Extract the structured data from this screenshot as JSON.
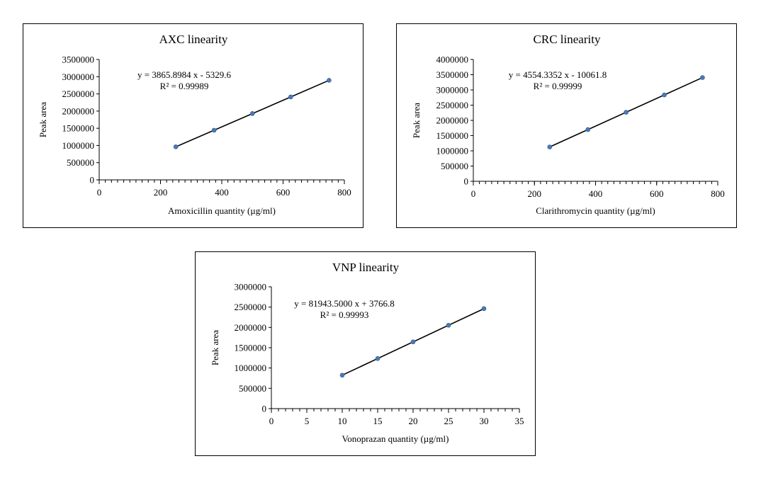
{
  "chart_data": [
    {
      "type": "scatter",
      "title": "AXC linearity",
      "xlabel": "Amoxicillin  quantity  (µg/ml)",
      "ylabel": "Peak area",
      "xlim": [
        0,
        800
      ],
      "ylim": [
        0,
        3500000
      ],
      "xticks": [
        0,
        200,
        400,
        600,
        800
      ],
      "yticks": [
        0,
        500000,
        1000000,
        1500000,
        2000000,
        2500000,
        3000000,
        3500000
      ],
      "x_minor_step": 20,
      "grid": false,
      "legend": "none",
      "trendline": "linear",
      "marker_color": "#4a7ab5",
      "line_color": "#000000",
      "series": [
        {
          "x": [
            250,
            375,
            500,
            625,
            750
          ],
          "y": [
            961000,
            1444000,
            1928000,
            2411000,
            2894000
          ]
        }
      ],
      "annotations": [
        "y = 3865.8984 x - 5329.6",
        "R² = 0.99989"
      ]
    },
    {
      "type": "scatter",
      "title": "CRC linearity",
      "xlabel": "Clarithromycin  quantity  (µg/ml)",
      "ylabel": "Peak area",
      "xlim": [
        0,
        800
      ],
      "ylim": [
        0,
        4000000
      ],
      "xticks": [
        0,
        200,
        400,
        600,
        800
      ],
      "yticks": [
        0,
        500000,
        1000000,
        1500000,
        2000000,
        2500000,
        3000000,
        3500000,
        4000000
      ],
      "x_minor_step": 20,
      "grid": false,
      "legend": "none",
      "trendline": "linear",
      "marker_color": "#4a7ab5",
      "line_color": "#000000",
      "series": [
        {
          "x": [
            250,
            375,
            500,
            625,
            750
          ],
          "y": [
            1128000,
            1698000,
            2267000,
            2836000,
            3406000
          ]
        }
      ],
      "annotations": [
        "y = 4554.3352 x - 10061.8",
        "R² = 0.99999"
      ]
    },
    {
      "type": "scatter",
      "title": "VNP linearity",
      "xlabel": "Vonoprazan  quantity  (µg/ml)",
      "ylabel": "Peak area",
      "xlim": [
        0,
        35
      ],
      "ylim": [
        0,
        3000000
      ],
      "xticks": [
        0,
        5,
        10,
        15,
        20,
        25,
        30,
        35
      ],
      "yticks": [
        0,
        500000,
        1000000,
        1500000,
        2000000,
        2500000,
        3000000
      ],
      "x_minor_step": 1,
      "grid": false,
      "legend": "none",
      "trendline": "linear",
      "marker_color": "#4a7ab5",
      "line_color": "#000000",
      "series": [
        {
          "x": [
            10,
            15,
            20,
            25,
            30
          ],
          "y": [
            823000,
            1233000,
            1643000,
            2052000,
            2462000
          ]
        }
      ],
      "annotations": [
        "y = 81943.5000 x + 3766.8",
        "R² = 0.99993"
      ]
    }
  ]
}
